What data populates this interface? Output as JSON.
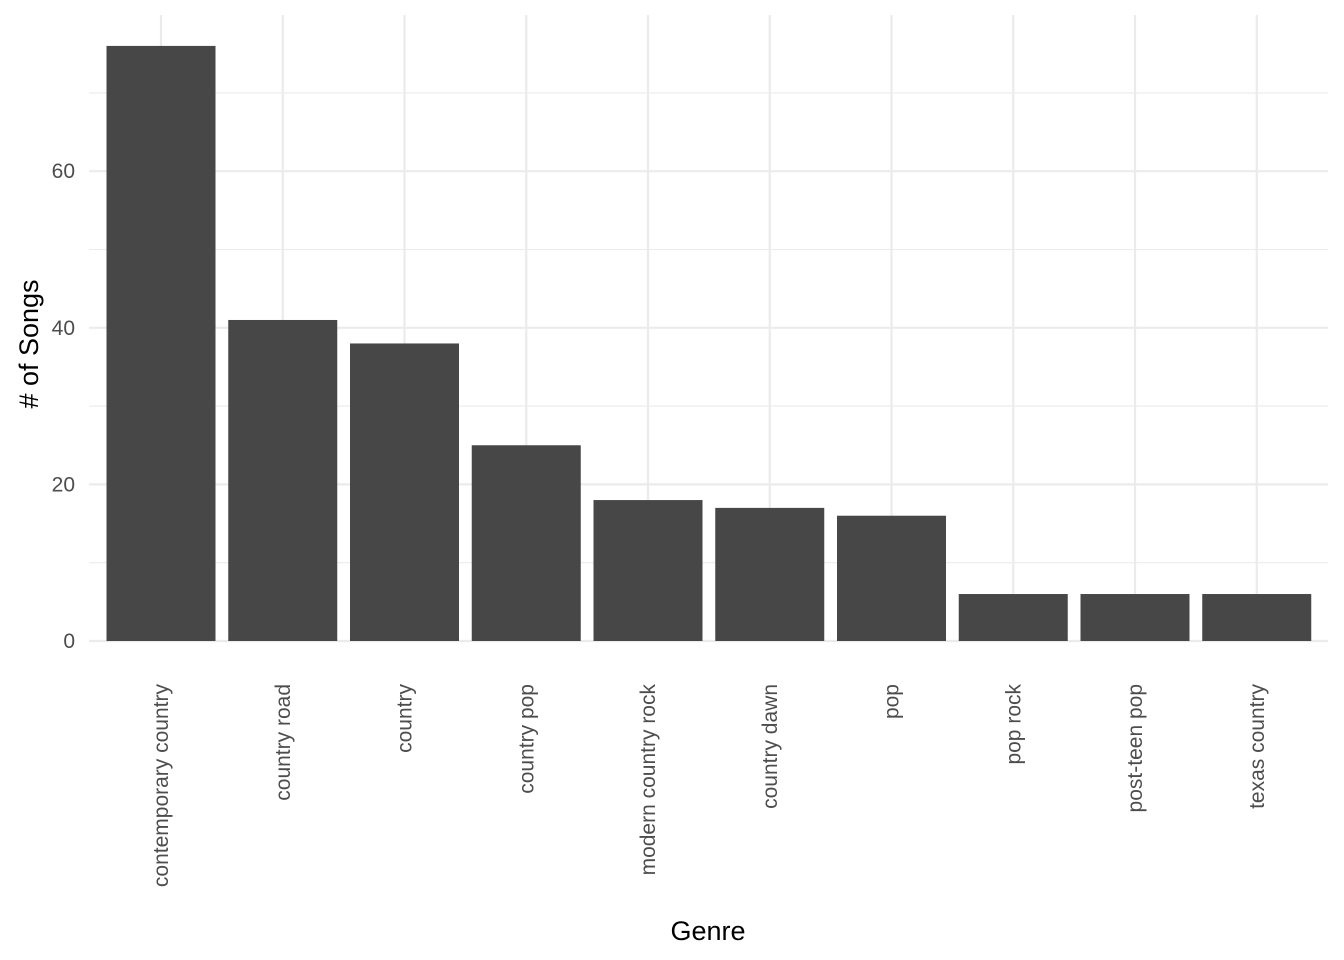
{
  "chart_data": {
    "type": "bar",
    "title": "",
    "xlabel": "Genre",
    "ylabel": "# of Songs",
    "categories": [
      "contemporary country",
      "country road",
      "country",
      "country pop",
      "modern country rock",
      "country dawn",
      "pop",
      "pop rock",
      "post-teen pop",
      "texas country"
    ],
    "values": [
      76,
      41,
      38,
      25,
      18,
      17,
      16,
      6,
      6,
      6
    ],
    "ylim": [
      0,
      80
    ],
    "yticks": [
      0,
      20,
      40,
      60
    ],
    "ytick_labels": [
      "0",
      "20",
      "40",
      "60"
    ],
    "grid": true,
    "legend": "none",
    "bar_color": "#474747",
    "grid_color": "#ebebeb"
  }
}
